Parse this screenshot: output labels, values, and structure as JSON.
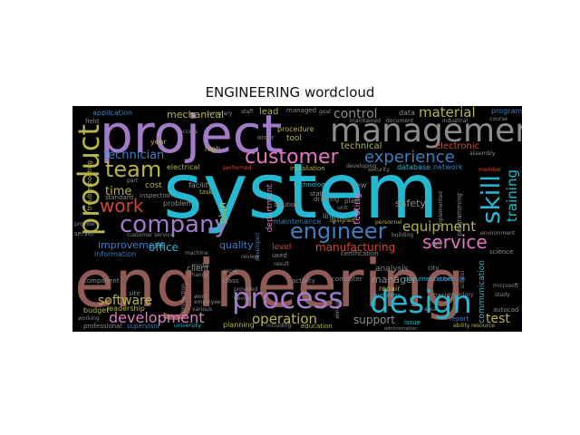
{
  "title": "ENGINEERING wordcloud",
  "colors": {
    "purple": "#a27bc8",
    "cyan": "#24b9d1",
    "brown": "#8f5b54",
    "gray": "#8c8c8c",
    "olive": "#b7b44a",
    "blue": "#3e7fbf",
    "pink": "#e377c2",
    "red": "#d14836"
  },
  "words": {
    "system": "system",
    "engineering": "engineering",
    "project": "project",
    "management": "management",
    "product": "product",
    "design": "design",
    "process": "process",
    "company": "company",
    "engineer": "engineer",
    "customer": "customer",
    "team": "team",
    "work": "work",
    "skill": "skill",
    "service": "service",
    "experience": "experience",
    "development": "development",
    "operation": "operation",
    "technician": "technician",
    "control": "control",
    "material": "material",
    "equipment": "equipment",
    "software": "software",
    "training": "training",
    "time": "time",
    "test": "test",
    "manufacturing": "manufacturing",
    "mechanical": "mechanical",
    "improvement": "improvement",
    "office": "office",
    "quality": "quality",
    "support": "support",
    "technical": "technical",
    "electronic": "electronic",
    "lead": "lead",
    "manager": "manager",
    "safety": "safety",
    "testing": "testing",
    "maintenance": "maintenance",
    "department": "department",
    "plan": "plan",
    "information": "information",
    "level": "level",
    "application": "application",
    "customer_service": "customer service",
    "database": "database",
    "network": "network",
    "analysis": "analysis",
    "documentation": "documentation",
    "repair": "repair",
    "certification": "certification",
    "communication": "communication",
    "procedure": "procedure",
    "tool": "tool",
    "installation": "installation",
    "technology": "technology",
    "solution": "solution",
    "client": "client",
    "budget": "budget",
    "leadership": "leadership",
    "site": "site",
    "planning": "planning",
    "education": "education",
    "professional": "professional",
    "supervisor": "supervisor",
    "university": "university",
    "computer": "computer",
    "business": "business",
    "report": "report",
    "issue": "issue",
    "ability": "ability",
    "resource": "resource",
    "science": "science",
    "schedule": "schedule",
    "programming": "programming",
    "personnel": "personnel",
    "designed": "designed",
    "facility": "facility",
    "task": "task",
    "cost": "cost",
    "standard": "standard",
    "inspection": "inspection",
    "problem": "problem",
    "year": "year",
    "high": "high",
    "electrical": "electrical",
    "performed": "performed",
    "state": "state",
    "new": "new",
    "drawing": "drawing",
    "plant": "plant",
    "line": "line",
    "unit": "unit",
    "developed": "developed",
    "building": "building",
    "component": "component",
    "model": "model",
    "change": "change",
    "excel": "excel",
    "class": "class",
    "activity": "activity",
    "used": "used",
    "review": "review",
    "provided": "provided",
    "device": "device",
    "employee": "employee",
    "various": "various",
    "word": "word",
    "machine": "machine",
    "data": "data",
    "maintained": "maintained",
    "document": "document",
    "industrial": "industrial",
    "program": "program",
    "course": "course",
    "assembly": "assembly",
    "member": "member",
    "security": "security",
    "developing": "developing",
    "implemented": "implemented",
    "environment": "environment",
    "autocad": "autocad",
    "city": "city",
    "school": "school",
    "basic": "basic",
    "inventory": "inventory",
    "field": "field",
    "server": "server",
    "provide": "provide",
    "managed": "managed",
    "goal": "goal",
    "order": "order",
    "staff": "staff",
    "summary": "summary",
    "production": "production",
    "including": "including",
    "study": "study",
    "access": "access",
    "part": "part",
    "window": "window",
    "area": "area",
    "sale": "sale",
    "result": "result",
    "microsoft": "microsoft",
    "administration": "administration",
    "working": "working",
    "troubleshooting": "troubleshooting"
  }
}
